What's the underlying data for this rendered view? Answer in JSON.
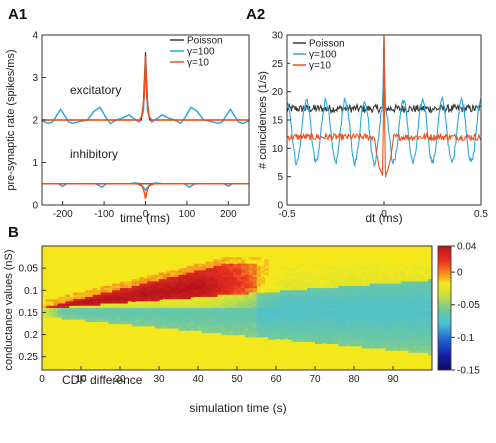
{
  "colors": {
    "poisson": "#3a3a3a",
    "gamma100": "#2aa9df",
    "gamma10": "#f0501e"
  },
  "chart_data": [
    {
      "id": "A1",
      "panel_label": "A1",
      "type": "line",
      "xlabel": "time (ms)",
      "ylabel": "pre-synaptic rate (spikes/ms)",
      "xlim": [
        -250,
        250
      ],
      "ylim": [
        0,
        4
      ],
      "xticks": [
        -200,
        -100,
        0,
        100,
        200
      ],
      "yticks": [
        0,
        1,
        2,
        3,
        4
      ],
      "annotations": [
        "excitatory",
        "inhibitory"
      ],
      "legend": [
        "Poisson",
        "γ=100",
        "γ=10"
      ],
      "legend_position": "top-right",
      "series": [
        {
          "name": "Poisson",
          "color": "#3a3a3a",
          "group": "excitatory",
          "x": [
            -250,
            -150,
            -50,
            -10,
            -5,
            0,
            5,
            10,
            50,
            150,
            250
          ],
          "y": [
            2.0,
            2.0,
            2.0,
            2.0,
            2.4,
            3.6,
            2.4,
            2.0,
            2.0,
            2.0,
            2.0
          ]
        },
        {
          "name": "γ=100",
          "color": "#2aa9df",
          "group": "excitatory",
          "x": [
            -250,
            -235,
            -225,
            -205,
            -185,
            -175,
            -160,
            -140,
            -125,
            -110,
            -95,
            -85,
            -70,
            -55,
            -40,
            -30,
            -15,
            -5,
            0,
            5,
            15,
            30,
            40,
            55,
            70,
            85,
            95,
            110,
            125,
            140,
            160,
            175,
            185,
            205,
            225,
            235,
            250
          ],
          "y": [
            1.98,
            1.92,
            1.95,
            2.25,
            1.95,
            1.92,
            1.96,
            2.0,
            2.2,
            2.3,
            2.05,
            1.92,
            2.0,
            2.05,
            2.12,
            2.05,
            1.95,
            2.2,
            3.3,
            2.2,
            1.95,
            2.05,
            2.12,
            2.05,
            2.0,
            1.92,
            2.05,
            2.3,
            2.2,
            2.0,
            1.96,
            1.92,
            1.95,
            2.25,
            1.95,
            1.92,
            1.98
          ]
        },
        {
          "name": "γ=10",
          "color": "#f0501e",
          "group": "excitatory",
          "x": [
            -250,
            -150,
            -50,
            -15,
            -8,
            -3,
            0,
            3,
            8,
            15,
            50,
            150,
            250
          ],
          "y": [
            2.0,
            2.0,
            2.0,
            2.0,
            2.1,
            2.6,
            3.5,
            2.6,
            2.1,
            2.0,
            2.0,
            2.0,
            2.0
          ]
        },
        {
          "name": "Poisson",
          "color": "#3a3a3a",
          "group": "inhibitory",
          "x": [
            -250,
            250
          ],
          "y": [
            0.5,
            0.5
          ]
        },
        {
          "name": "γ=100",
          "color": "#2aa9df",
          "group": "inhibitory",
          "x": [
            -250,
            -210,
            -200,
            -190,
            -120,
            -105,
            -95,
            -40,
            -25,
            -15,
            -5,
            0,
            5,
            15,
            25,
            40,
            95,
            105,
            120,
            190,
            200,
            210,
            250
          ],
          "y": [
            0.5,
            0.5,
            0.44,
            0.5,
            0.5,
            0.42,
            0.5,
            0.5,
            0.52,
            0.5,
            0.42,
            0.35,
            0.42,
            0.5,
            0.52,
            0.5,
            0.5,
            0.42,
            0.5,
            0.5,
            0.44,
            0.5,
            0.5
          ]
        },
        {
          "name": "γ=10",
          "color": "#f0501e",
          "group": "inhibitory",
          "x": [
            -250,
            -20,
            -8,
            -3,
            0,
            3,
            8,
            20,
            250
          ],
          "y": [
            0.5,
            0.5,
            0.45,
            0.3,
            0.15,
            0.3,
            0.45,
            0.5,
            0.5
          ]
        }
      ]
    },
    {
      "id": "A2",
      "panel_label": "A2",
      "type": "line",
      "xlabel": "dt (ms)",
      "ylabel": "# coincidences (1/s)",
      "xlim": [
        -0.5,
        0.5
      ],
      "ylim": [
        0,
        30
      ],
      "xticks": [
        -0.5,
        0,
        0.5
      ],
      "yticks": [
        0,
        5,
        10,
        15,
        20,
        25,
        30
      ],
      "legend": [
        "Poisson",
        "γ=100",
        "γ=10"
      ],
      "legend_position": "top-left",
      "series": [
        {
          "name": "Poisson",
          "color": "#3a3a3a",
          "baseline": 17,
          "noise": 0.7,
          "peak": 30
        },
        {
          "name": "γ=100",
          "color": "#2aa9df",
          "baseline": 13,
          "amplitude": 5.5,
          "period": 0.1,
          "noise": 0.6,
          "peak": 30
        },
        {
          "name": "γ=10",
          "color": "#f0501e",
          "baseline": 12,
          "noise": 0.6,
          "peak": 30,
          "dip_min": 5,
          "dip_width": 0.05
        }
      ]
    },
    {
      "id": "B",
      "panel_label": "B",
      "type": "heatmap",
      "xlabel": "simulation time (s)",
      "ylabel": "conductance values (nS)",
      "xlim": [
        0,
        100
      ],
      "ylim": [
        0,
        0.28
      ],
      "y_axis_inverted": true,
      "xticks": [
        0,
        10,
        20,
        30,
        40,
        50,
        60,
        70,
        80,
        90
      ],
      "yticks": [
        0.05,
        0.1,
        0.15,
        0.2,
        0.25
      ],
      "colorbar_ticks": [
        0.04,
        0,
        -0.05,
        -0.1,
        -0.15
      ],
      "colorbar_range": [
        -0.15,
        0.04
      ],
      "annotation": "CDF difference"
    }
  ]
}
